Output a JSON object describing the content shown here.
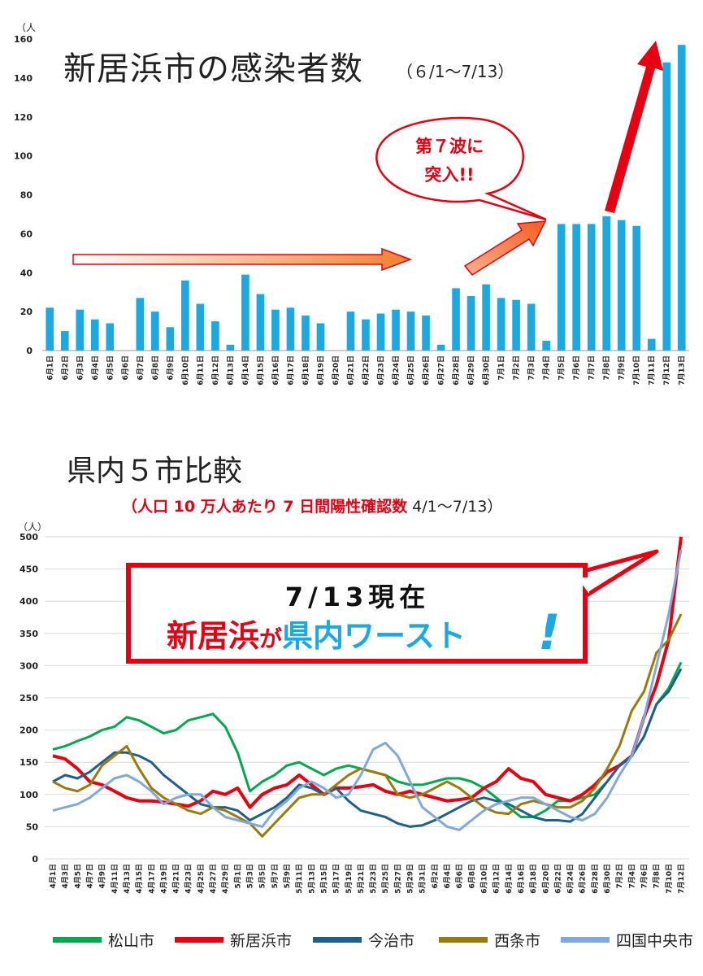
{
  "chart1": {
    "title": "新居浜市の感染者数",
    "subtitle": "（６/1～7/13）",
    "unit": "（人",
    "callout": [
      "第７波に",
      "突入!!"
    ],
    "colors": {
      "bar": "#1ca8e0",
      "callout": "#e60012",
      "arrow": "#f08030"
    }
  },
  "chart2": {
    "title": "県内５市比較",
    "subtitle_red": "（人口 10 万人あたり 7 日間陽性確認数",
    "subtitle_rest": " 4/1～7/13）",
    "unit": "（人）",
    "banner_line1": "7/13現在",
    "banner_part1": "新居浜",
    "banner_part2": "が",
    "banner_part3": "県内ワースト",
    "banner_exclaim": "!",
    "colors": {
      "banner_border": "#e60012",
      "banner_red": "#e60012",
      "banner_blue": "#1ca8e0"
    }
  },
  "chart_data": [
    {
      "type": "bar",
      "ylim": [
        0,
        160
      ],
      "yticks": [
        0,
        20,
        40,
        60,
        80,
        100,
        120,
        140,
        160
      ],
      "grid": false,
      "categories": [
        "6月1日",
        "6月2日",
        "6月3日",
        "6月4日",
        "6月5日",
        "6月6日",
        "6月7日",
        "6月8日",
        "6月9日",
        "6月10日",
        "6月11日",
        "6月12日",
        "6月13日",
        "6月14日",
        "6月15日",
        "6月16日",
        "6月17日",
        "6月18日",
        "6月19日",
        "6月20日",
        "6月21日",
        "6月22日",
        "6月23日",
        "6月24日",
        "6月25日",
        "6月26日",
        "6月27日",
        "6月28日",
        "6月29日",
        "6月30日",
        "7月1日",
        "7月2日",
        "7月3日",
        "7月4日",
        "7月5日",
        "7月6日",
        "7月7日",
        "7月8日",
        "7月9日",
        "7月10日",
        "7月11日",
        "7月12日",
        "7月13日"
      ],
      "values": [
        22,
        10,
        21,
        16,
        14,
        0,
        27,
        20,
        12,
        36,
        24,
        15,
        3,
        39,
        29,
        21,
        22,
        18,
        14,
        0,
        20,
        16,
        19,
        21,
        20,
        18,
        3,
        32,
        28,
        34,
        27,
        26,
        24,
        5,
        65,
        65,
        65,
        69,
        67,
        64,
        6,
        148,
        157
      ]
    },
    {
      "type": "line",
      "ylim": [
        0,
        500
      ],
      "yticks": [
        0,
        50,
        100,
        150,
        200,
        250,
        300,
        350,
        400,
        450,
        500
      ],
      "grid": true,
      "x_labels": [
        "4月1日",
        "4月3日",
        "4月5日",
        "4月7日",
        "4月9日",
        "4月11日",
        "4月13日",
        "4月15日",
        "4月17日",
        "4月19日",
        "4月21日",
        "4月23日",
        "4月25日",
        "4月27日",
        "4月29日",
        "5月1日",
        "5月3日",
        "5月5日",
        "5月7日",
        "5月9日",
        "5月11日",
        "5月13日",
        "5月15日",
        "5月17日",
        "5月19日",
        "5月21日",
        "5月23日",
        "5月25日",
        "5月27日",
        "5月29日",
        "5月31日",
        "6月2日",
        "6月4日",
        "6月6日",
        "6月8日",
        "6月10日",
        "6月12日",
        "6月14日",
        "6月16日",
        "6月18日",
        "6月20日",
        "6月22日",
        "6月24日",
        "6月26日",
        "6月28日",
        "6月30日",
        "7月2日",
        "7月4日",
        "7月6日",
        "7月8日",
        "7月10日",
        "7月12日"
      ],
      "legend_position": "bottom",
      "series": [
        {
          "name": "松山市",
          "color": "#00a84f",
          "values": [
            170,
            175,
            183,
            190,
            200,
            205,
            220,
            215,
            205,
            195,
            200,
            215,
            220,
            225,
            205,
            165,
            105,
            120,
            130,
            145,
            150,
            140,
            130,
            140,
            145,
            140,
            135,
            130,
            120,
            115,
            115,
            120,
            125,
            125,
            120,
            110,
            95,
            80,
            65,
            65,
            75,
            90,
            90,
            95,
            100,
            120,
            145,
            160,
            190,
            240,
            265,
            305
          ]
        },
        {
          "name": "新居浜市",
          "color": "#e60012",
          "values": [
            160,
            155,
            140,
            120,
            115,
            105,
            95,
            90,
            90,
            88,
            85,
            82,
            90,
            105,
            100,
            110,
            80,
            100,
            110,
            115,
            130,
            115,
            100,
            110,
            110,
            112,
            115,
            105,
            100,
            105,
            100,
            95,
            90,
            92,
            95,
            110,
            120,
            140,
            125,
            120,
            100,
            95,
            90,
            100,
            115,
            135,
            145,
            160,
            220,
            270,
            340,
            500
          ]
        },
        {
          "name": "今治市",
          "color": "#1f5f8b",
          "values": [
            120,
            130,
            125,
            135,
            150,
            165,
            165,
            160,
            150,
            130,
            115,
            100,
            85,
            80,
            80,
            75,
            60,
            70,
            80,
            95,
            115,
            110,
            100,
            110,
            90,
            75,
            70,
            65,
            55,
            50,
            52,
            60,
            70,
            80,
            90,
            95,
            90,
            85,
            75,
            65,
            60,
            60,
            58,
            70,
            95,
            120,
            145,
            160,
            190,
            240,
            260,
            295
          ]
        },
        {
          "name": "西条市",
          "color": "#9b7a0a",
          "values": [
            120,
            110,
            105,
            115,
            145,
            160,
            175,
            140,
            110,
            95,
            85,
            75,
            70,
            80,
            75,
            65,
            55,
            35,
            55,
            75,
            95,
            100,
            100,
            115,
            130,
            140,
            135,
            130,
            100,
            95,
            100,
            110,
            120,
            110,
            95,
            80,
            72,
            70,
            85,
            90,
            85,
            80,
            80,
            90,
            110,
            140,
            175,
            230,
            260,
            320,
            340,
            380
          ]
        },
        {
          "name": "四国中央市",
          "color": "#7fa9da",
          "values": [
            75,
            80,
            85,
            95,
            110,
            125,
            130,
            120,
            105,
            85,
            95,
            100,
            100,
            80,
            65,
            60,
            55,
            50,
            75,
            90,
            110,
            120,
            110,
            95,
            100,
            130,
            170,
            180,
            160,
            120,
            80,
            65,
            50,
            45,
            60,
            75,
            85,
            90,
            95,
            95,
            85,
            75,
            65,
            60,
            70,
            95,
            130,
            160,
            220,
            300,
            380,
            480
          ]
        }
      ]
    }
  ]
}
